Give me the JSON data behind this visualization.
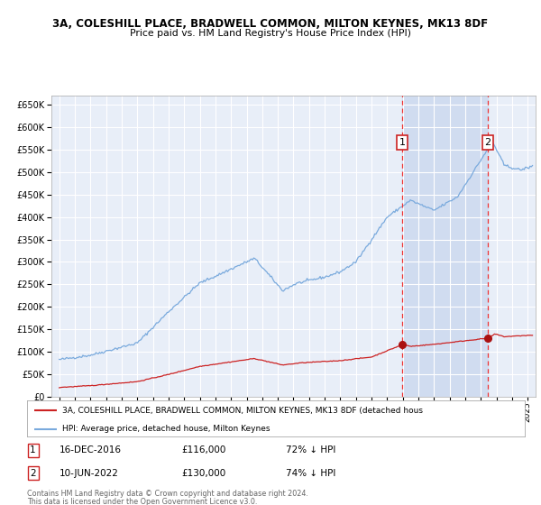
{
  "title1": "3A, COLESHILL PLACE, BRADWELL COMMON, MILTON KEYNES, MK13 8DF",
  "title2": "Price paid vs. HM Land Registry's House Price Index (HPI)",
  "ylim": [
    0,
    670000
  ],
  "yticks": [
    0,
    50000,
    100000,
    150000,
    200000,
    250000,
    300000,
    350000,
    400000,
    450000,
    500000,
    550000,
    600000,
    650000
  ],
  "xlim_start": 1994.5,
  "xlim_end": 2025.5,
  "bg_color": "#ffffff",
  "plot_bg_color": "#e8eef8",
  "grid_color": "#ffffff",
  "hpi_color": "#7aaadd",
  "red_color": "#cc2222",
  "marker_color": "#aa1111",
  "dashed_line_color": "#ee3333",
  "sale1_x": 2016.96,
  "sale1_y": 116000,
  "sale2_x": 2022.44,
  "sale2_y": 130000,
  "sale1_label": "1",
  "sale2_label": "2",
  "highlight_color": "#d0dcf0",
  "legend_red_label": "3A, COLESHILL PLACE, BRADWELL COMMON, MILTON KEYNES, MK13 8DF (detached hous",
  "legend_blue_label": "HPI: Average price, detached house, Milton Keynes",
  "footer1": "Contains HM Land Registry data © Crown copyright and database right 2024.",
  "footer2": "This data is licensed under the Open Government Licence v3.0.",
  "note1_label": "1",
  "note1_date": "16-DEC-2016",
  "note1_price": "£116,000",
  "note1_hpi": "72% ↓ HPI",
  "note2_label": "2",
  "note2_date": "10-JUN-2022",
  "note2_price": "£130,000",
  "note2_hpi": "74% ↓ HPI"
}
